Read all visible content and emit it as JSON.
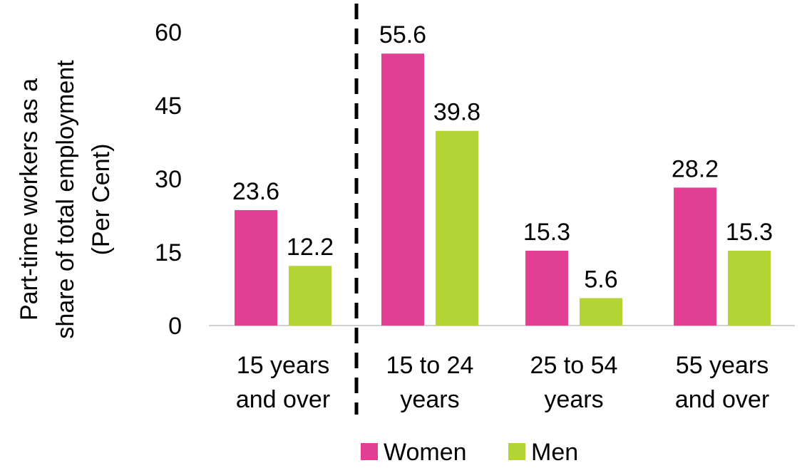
{
  "chart_data": {
    "type": "bar",
    "ylabel_lines": [
      "Part-time workers as a",
      "share of total employment",
      "(Per Cent)"
    ],
    "xlabel": "",
    "ylim": [
      0,
      60
    ],
    "yticks": [
      0,
      15,
      30,
      45,
      60
    ],
    "grid": false,
    "categories": [
      [
        "15 years",
        "and over"
      ],
      [
        "15 to 24",
        "years"
      ],
      [
        "25 to 54",
        "years"
      ],
      [
        "55 years",
        "and over"
      ]
    ],
    "series": [
      {
        "name": "Women",
        "color": "#e13f93",
        "values": [
          23.6,
          55.6,
          15.3,
          28.2
        ]
      },
      {
        "name": "Men",
        "color": "#b4d334",
        "values": [
          12.2,
          39.8,
          5.6,
          15.3
        ]
      }
    ],
    "data_labels": [
      [
        "23.6",
        "55.6",
        "15.3",
        "28.2"
      ],
      [
        "12.2",
        "39.8",
        "5.6",
        "15.3"
      ]
    ],
    "separator": "dashed vertical line after first category",
    "legend_position": "bottom-center"
  }
}
